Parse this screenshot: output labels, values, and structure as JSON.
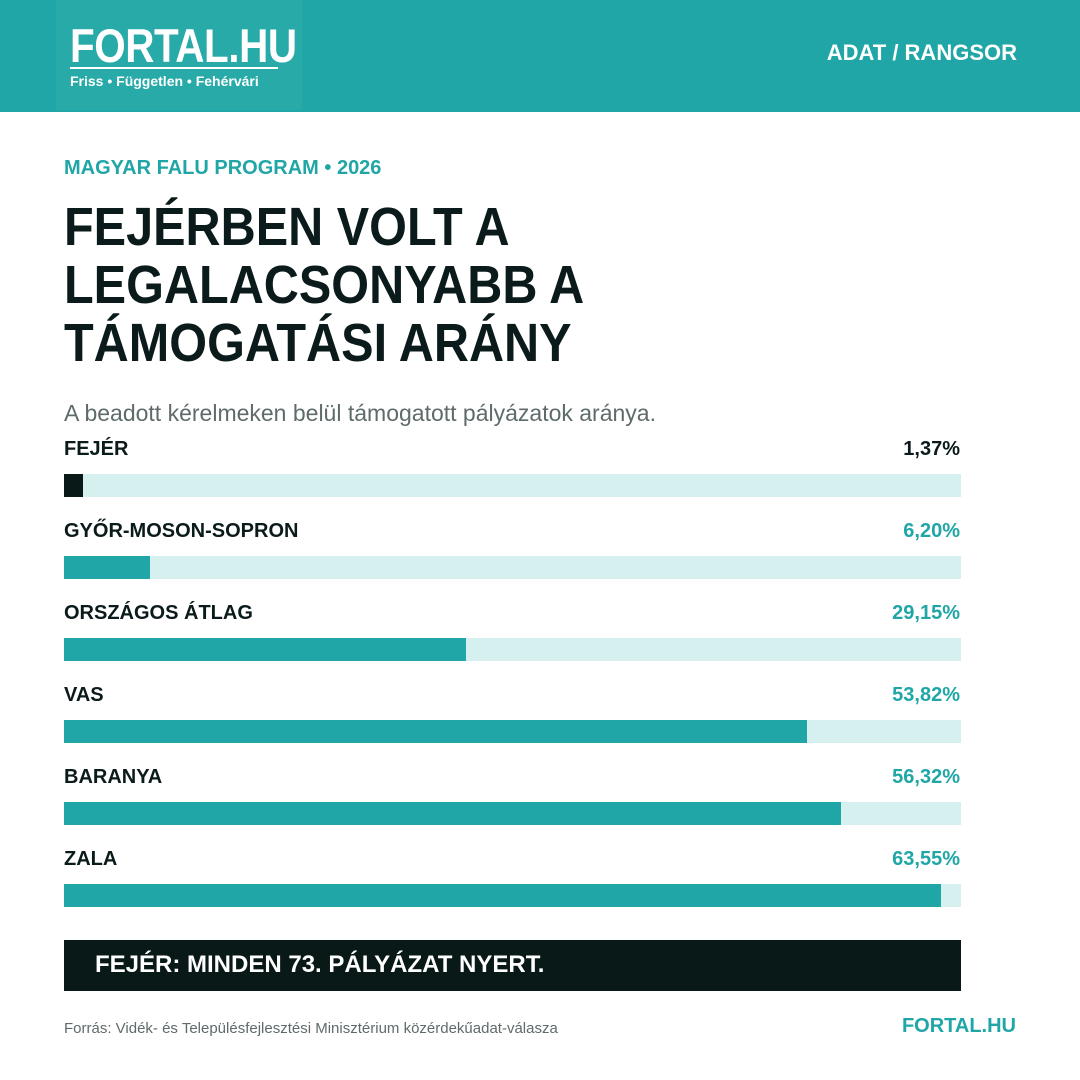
{
  "header": {
    "logo": "FORTAL.HU",
    "tagline": "Friss • Független • Fehérvári",
    "section": "ADAT / RANGSOR"
  },
  "article": {
    "kicker": "MAGYAR FALU PROGRAM • 2026",
    "headline": "FEJÉRBEN VOLT A LEGALACSONYABB A TÁMOGATÁSI ARÁNY",
    "subtitle": "A beadott kérelmeken belül támogatott pályázatok aránya."
  },
  "chart_data": {
    "type": "bar",
    "orientation": "horizontal",
    "categories": [
      "FEJÉR",
      "GYŐR-MOSON-SOPRON",
      "ORSZÁGOS ÁTLAG",
      "VAS",
      "BARANYA",
      "ZALA"
    ],
    "values": [
      1.37,
      6.2,
      29.15,
      53.82,
      56.32,
      63.55
    ],
    "value_labels": [
      "1,37%",
      "6,20%",
      "29,15%",
      "53,82%",
      "56,32%",
      "63,55%"
    ],
    "unit": "%",
    "xlim": [
      0,
      65
    ],
    "highlight_index": 0,
    "colors": {
      "highlight": "#081918",
      "bar": "#20a6a6",
      "track": "#d6efef",
      "label_default": "#20a6a6",
      "label_highlight": "#0b1a1a"
    }
  },
  "callout": "FEJÉR: MINDEN 73. PÁLYÁZAT NYERT.",
  "footer": {
    "source": "Forrás: Vidék- és Településfejlesztési Minisztérium közérdekűadat-válasza",
    "logo": "FORTAL.HU"
  }
}
